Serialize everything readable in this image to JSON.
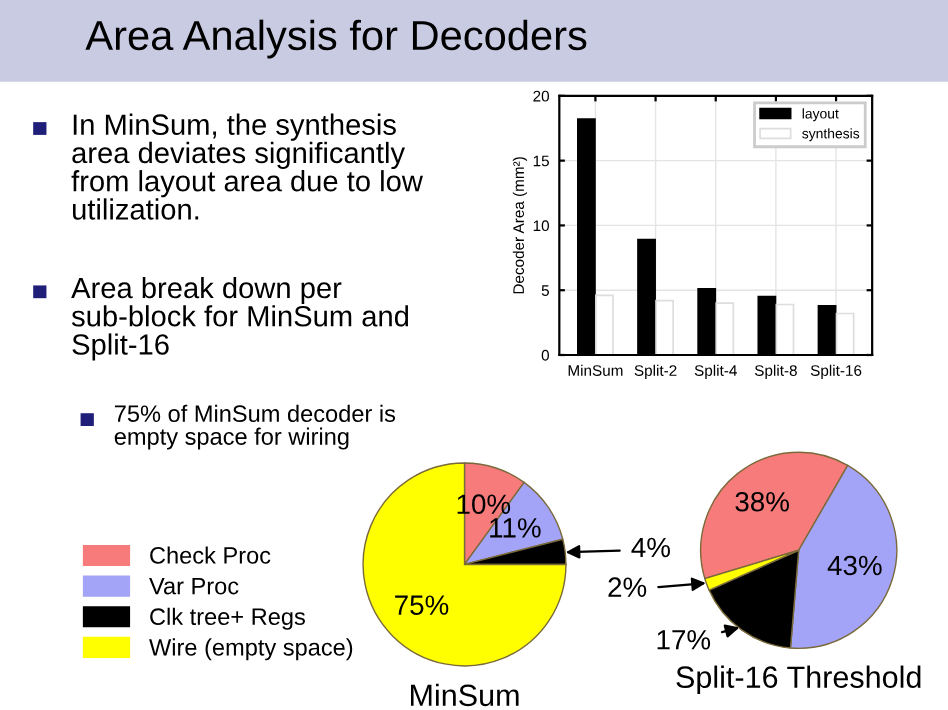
{
  "chart_data": [
    {
      "type": "other",
      "title": "Area Analysis for Decoders",
      "annotations": [
        "In MinSum, the synthesis area deviates significantly from layout area due to low utilization.",
        "Area break down per sub-block for MinSum and Split-16",
        "75% of MinSum decoder is empty space for wiring"
      ]
    },
    {
      "type": "bar",
      "ylabel": "Decoder Area (mm²)",
      "categories": [
        "MinSum",
        "Split-2",
        "Split-4",
        "Split-8",
        "Split-16"
      ],
      "series": [
        {
          "name": "layout",
          "color": "#000000",
          "values": [
            18.2,
            8.9,
            5.1,
            4.5,
            3.8
          ]
        },
        {
          "name": "synthesis",
          "color": "#ffffff",
          "values": [
            4.6,
            4.2,
            4.0,
            3.9,
            3.2
          ]
        }
      ],
      "ylim": [
        0,
        20
      ],
      "yticks": [
        0,
        5,
        10,
        15,
        20
      ],
      "grid": true,
      "legend": "top right"
    },
    {
      "type": "pie",
      "title": "MinSum",
      "categories": [
        "Check Proc",
        "Var Proc",
        "Clk tree+ Regs",
        "Wire (empty space)"
      ],
      "values": [
        10,
        11,
        4,
        75
      ],
      "colors": [
        "#f77b7b",
        "#a3a3f7",
        "#000000",
        "#ffff00"
      ],
      "value_labels": [
        "10%",
        "11%",
        "4%",
        "75%"
      ],
      "legend": "left"
    },
    {
      "type": "pie",
      "title": "Split-16 Threshold",
      "categories": [
        null,
        null,
        null,
        null
      ],
      "values": [
        38,
        43,
        17,
        2
      ],
      "colors": [
        "#f77b7b",
        "#a3a3f7",
        "#000000",
        "#ffff00"
      ],
      "value_labels": [
        "38%",
        "43%",
        "17%",
        "2%"
      ]
    }
  ]
}
